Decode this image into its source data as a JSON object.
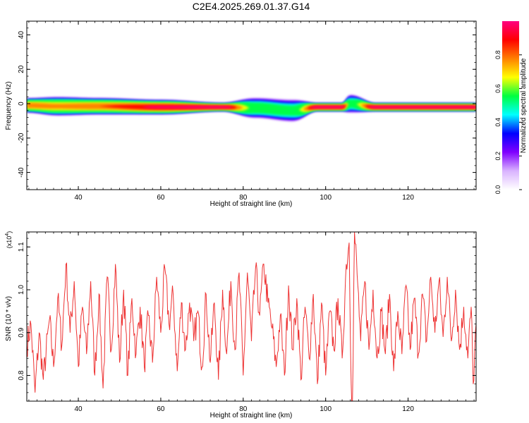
{
  "title": "C2E4.2025.269.01.37.G14",
  "chart_data": [
    {
      "type": "heatmap",
      "xlabel": "Height of straight line (km)",
      "ylabel": "Frequency (Hz)",
      "xlim": [
        27.5,
        136.5
      ],
      "ylim": [
        -50,
        48
      ],
      "xticks": [
        40,
        60,
        80,
        100,
        120
      ],
      "yticks": [
        40,
        20,
        0,
        -20,
        -40
      ],
      "xtick_labels": [
        "40",
        "60",
        "80",
        "100",
        "120"
      ],
      "ytick_labels": [
        "40",
        "20",
        "0",
        "-20",
        "-40"
      ],
      "colorbar": {
        "label": "Normalized spectral amplitude",
        "range": [
          0,
          1
        ],
        "ticks": [
          0.0,
          0.2,
          0.4,
          0.6,
          0.8
        ],
        "tick_labels": [
          "0.0",
          "0.2",
          "0.4",
          "0.6",
          "0.8"
        ],
        "colors": [
          "#ffffff",
          "#d9b3ff",
          "#8000ff",
          "#0000ff",
          "#00ffff",
          "#00ff40",
          "#ffff00",
          "#ff8000",
          "#ff0000",
          "#ff0080"
        ]
      },
      "ridge": [
        {
          "x": 27.5,
          "freq": -1.0,
          "halfwidth": 3.5,
          "peak": 0.85
        },
        {
          "x": 35,
          "freq": -1.5,
          "halfwidth": 4.5,
          "peak": 0.8
        },
        {
          "x": 45,
          "freq": -1.5,
          "halfwidth": 4.0,
          "peak": 0.85
        },
        {
          "x": 60,
          "freq": -2.0,
          "halfwidth": 3.5,
          "peak": 0.95
        },
        {
          "x": 75,
          "freq": -2.0,
          "halfwidth": 2.0,
          "peak": 1.0
        },
        {
          "x": 83,
          "freq": -2.5,
          "halfwidth": 5.0,
          "peak": 0.6
        },
        {
          "x": 92,
          "freq": -4.0,
          "halfwidth": 5.5,
          "peak": 0.55
        },
        {
          "x": 98,
          "freq": -2.0,
          "halfwidth": 2.0,
          "peak": 1.0
        },
        {
          "x": 104,
          "freq": -2.0,
          "halfwidth": 2.0,
          "peak": 1.0
        },
        {
          "x": 106,
          "freq": 0.0,
          "halfwidth": 4.5,
          "peak": 0.55
        },
        {
          "x": 112,
          "freq": -2.0,
          "halfwidth": 2.0,
          "peak": 1.0
        },
        {
          "x": 136.5,
          "freq": -2.0,
          "halfwidth": 2.0,
          "peak": 1.0
        }
      ]
    },
    {
      "type": "line",
      "xlabel": "Height of straight line (km)",
      "ylabel": "SNR (10 * v/v)",
      "y_multiplier": "(x10",
      "y_multiplier_exp": "4",
      "y_multiplier_close": ")",
      "xlim": [
        27.5,
        136.5
      ],
      "ylim": [
        0.74,
        1.135
      ],
      "xticks": [
        40,
        60,
        80,
        100,
        120
      ],
      "yticks": [
        0.8,
        0.9,
        1.0,
        1.1
      ],
      "xtick_labels": [
        "40",
        "60",
        "80",
        "100",
        "120"
      ],
      "ytick_labels": [
        "0.8",
        "0.9",
        "1.0",
        "1.1"
      ],
      "series": [
        {
          "name": "SNR",
          "color": "#ee3333",
          "points": [
            {
              "x": 27.5,
              "y": 0.87
            },
            {
              "x": 28.5,
              "y": 0.92
            },
            {
              "x": 29.5,
              "y": 0.76
            },
            {
              "x": 30.5,
              "y": 0.9
            },
            {
              "x": 31.5,
              "y": 0.79
            },
            {
              "x": 33,
              "y": 0.93
            },
            {
              "x": 34,
              "y": 0.82
            },
            {
              "x": 35,
              "y": 0.98
            },
            {
              "x": 36,
              "y": 0.87
            },
            {
              "x": 37,
              "y": 1.06
            },
            {
              "x": 38,
              "y": 0.9
            },
            {
              "x": 39,
              "y": 1.02
            },
            {
              "x": 40,
              "y": 0.82
            },
            {
              "x": 41,
              "y": 0.96
            },
            {
              "x": 42,
              "y": 0.85
            },
            {
              "x": 43,
              "y": 1.02
            },
            {
              "x": 44,
              "y": 0.8
            },
            {
              "x": 45,
              "y": 0.99
            },
            {
              "x": 46,
              "y": 0.77
            },
            {
              "x": 47,
              "y": 1.03
            },
            {
              "x": 48,
              "y": 0.86
            },
            {
              "x": 49,
              "y": 1.06
            },
            {
              "x": 50,
              "y": 0.83
            },
            {
              "x": 51,
              "y": 1.0
            },
            {
              "x": 52,
              "y": 0.8
            },
            {
              "x": 53,
              "y": 0.98
            },
            {
              "x": 54,
              "y": 0.85
            },
            {
              "x": 55,
              "y": 0.96
            },
            {
              "x": 56,
              "y": 0.82
            },
            {
              "x": 57,
              "y": 0.94
            },
            {
              "x": 58,
              "y": 0.83
            },
            {
              "x": 59,
              "y": 1.03
            },
            {
              "x": 60,
              "y": 0.9
            },
            {
              "x": 61,
              "y": 1.05
            },
            {
              "x": 62,
              "y": 0.92
            },
            {
              "x": 63,
              "y": 0.99
            },
            {
              "x": 64,
              "y": 0.81
            },
            {
              "x": 65,
              "y": 0.97
            },
            {
              "x": 66,
              "y": 0.86
            },
            {
              "x": 67,
              "y": 0.97
            },
            {
              "x": 68,
              "y": 0.88
            },
            {
              "x": 69,
              "y": 0.95
            },
            {
              "x": 70,
              "y": 0.82
            },
            {
              "x": 71,
              "y": 0.99
            },
            {
              "x": 72,
              "y": 0.83
            },
            {
              "x": 73,
              "y": 0.97
            },
            {
              "x": 74,
              "y": 0.79
            },
            {
              "x": 75,
              "y": 1.0
            },
            {
              "x": 76,
              "y": 0.85
            },
            {
              "x": 77,
              "y": 1.02
            },
            {
              "x": 78,
              "y": 0.86
            },
            {
              "x": 79,
              "y": 1.04
            },
            {
              "x": 80,
              "y": 0.8
            },
            {
              "x": 81,
              "y": 1.04
            },
            {
              "x": 82,
              "y": 0.88
            },
            {
              "x": 83,
              "y": 1.05
            },
            {
              "x": 84,
              "y": 0.94
            },
            {
              "x": 85,
              "y": 1.06
            },
            {
              "x": 86,
              "y": 0.97
            },
            {
              "x": 87,
              "y": 0.91
            },
            {
              "x": 88,
              "y": 0.82
            },
            {
              "x": 89,
              "y": 0.94
            },
            {
              "x": 90,
              "y": 0.8
            },
            {
              "x": 91,
              "y": 1.01
            },
            {
              "x": 92,
              "y": 0.86
            },
            {
              "x": 93,
              "y": 0.98
            },
            {
              "x": 94,
              "y": 0.79
            },
            {
              "x": 95,
              "y": 0.96
            },
            {
              "x": 96,
              "y": 0.84
            },
            {
              "x": 97,
              "y": 0.99
            },
            {
              "x": 98,
              "y": 0.78
            },
            {
              "x": 99,
              "y": 0.97
            },
            {
              "x": 100,
              "y": 0.8
            },
            {
              "x": 101,
              "y": 0.95
            },
            {
              "x": 102,
              "y": 0.86
            },
            {
              "x": 103,
              "y": 0.98
            },
            {
              "x": 104,
              "y": 0.84
            },
            {
              "x": 105,
              "y": 1.06
            },
            {
              "x": 105.7,
              "y": 1.11
            },
            {
              "x": 106.2,
              "y": 0.78
            },
            {
              "x": 106.5,
              "y": 0.74
            },
            {
              "x": 107,
              "y": 1.135
            },
            {
              "x": 107.8,
              "y": 1.01
            },
            {
              "x": 108.5,
              "y": 0.88
            },
            {
              "x": 109.5,
              "y": 1.02
            },
            {
              "x": 110.5,
              "y": 0.86
            },
            {
              "x": 111.5,
              "y": 1.0
            },
            {
              "x": 112.5,
              "y": 0.84
            },
            {
              "x": 113.5,
              "y": 0.95
            },
            {
              "x": 114.5,
              "y": 0.85
            },
            {
              "x": 115.5,
              "y": 0.99
            },
            {
              "x": 116.5,
              "y": 0.81
            },
            {
              "x": 117.5,
              "y": 0.95
            },
            {
              "x": 118.5,
              "y": 0.85
            },
            {
              "x": 119.5,
              "y": 1.01
            },
            {
              "x": 120.5,
              "y": 0.86
            },
            {
              "x": 121.5,
              "y": 0.98
            },
            {
              "x": 122.5,
              "y": 0.85
            },
            {
              "x": 123.5,
              "y": 0.99
            },
            {
              "x": 124.5,
              "y": 0.88
            },
            {
              "x": 125.5,
              "y": 1.03
            },
            {
              "x": 126.5,
              "y": 0.9
            },
            {
              "x": 127.5,
              "y": 1.02
            },
            {
              "x": 128.5,
              "y": 0.89
            },
            {
              "x": 129.5,
              "y": 1.03
            },
            {
              "x": 130.5,
              "y": 0.88
            },
            {
              "x": 131.5,
              "y": 1.0
            },
            {
              "x": 132.5,
              "y": 0.86
            },
            {
              "x": 133.5,
              "y": 0.96
            },
            {
              "x": 134.5,
              "y": 0.84
            },
            {
              "x": 135.3,
              "y": 0.96
            },
            {
              "x": 135.8,
              "y": 0.78
            },
            {
              "x": 136.5,
              "y": 0.92
            }
          ]
        }
      ]
    }
  ]
}
